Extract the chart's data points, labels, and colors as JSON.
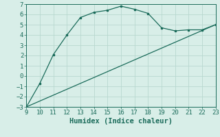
{
  "curve_x": [
    9,
    10,
    11,
    12,
    13,
    14,
    15,
    16,
    17,
    18,
    19,
    20,
    21,
    22,
    23
  ],
  "curve_y": [
    -3.0,
    -0.7,
    2.1,
    4.0,
    5.7,
    6.2,
    6.4,
    6.8,
    6.5,
    6.1,
    4.7,
    4.4,
    4.5,
    4.5,
    5.0
  ],
  "line_x": [
    9,
    23
  ],
  "line_y": [
    -3.0,
    5.0
  ],
  "color": "#1a6b5a",
  "bg_color": "#d8eee8",
  "grid_color": "#b8d8d0",
  "xlabel": "Humidex (Indice chaleur)",
  "xlim": [
    9,
    23
  ],
  "ylim": [
    -3,
    7
  ],
  "yticks": [
    -3,
    -2,
    -1,
    0,
    1,
    2,
    3,
    4,
    5,
    6,
    7
  ],
  "xticks": [
    9,
    10,
    11,
    12,
    13,
    14,
    15,
    16,
    17,
    18,
    19,
    20,
    21,
    22,
    23
  ],
  "font_size": 6.5,
  "xlabel_fontsize": 7.5
}
